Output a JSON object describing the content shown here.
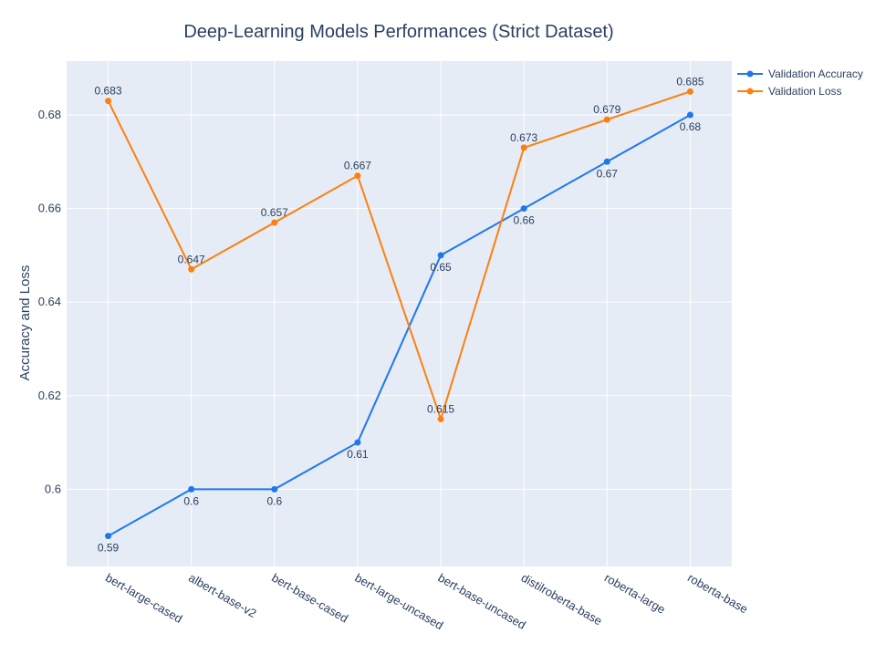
{
  "chart_data": {
    "type": "line",
    "title": "Deep-Learning Models Performances (Strict Dataset)",
    "xlabel": "",
    "ylabel": "Accuracy and Loss",
    "categories": [
      "bert-large-cased",
      "albert-base-v2",
      "bert-base-cased",
      "bert-large-uncased",
      "bert-base-uncased",
      "distilroberta-base",
      "roberta-large",
      "roberta-base"
    ],
    "series": [
      {
        "name": "Validation Accuracy",
        "color": "#1f77f0",
        "label_position": "below",
        "values": [
          0.59,
          0.6,
          0.6,
          0.61,
          0.65,
          0.66,
          0.67,
          0.68
        ],
        "labels": [
          "0.59",
          "0.6",
          "0.6",
          "0.61",
          "0.65",
          "0.66",
          "0.67",
          "0.68"
        ]
      },
      {
        "name": "Validation Loss",
        "color": "#ff7f0e",
        "label_position": "above",
        "values": [
          0.683,
          0.647,
          0.657,
          0.667,
          0.615,
          0.673,
          0.679,
          0.685
        ],
        "labels": [
          "0.683",
          "0.647",
          "0.657",
          "0.667",
          "0.615",
          "0.673",
          "0.679",
          "0.685"
        ]
      }
    ],
    "ylim": [
      0.5835,
      0.6915
    ],
    "yticks": [
      0.6,
      0.62,
      0.64,
      0.66,
      0.68
    ],
    "ytick_labels": [
      "0.6",
      "0.62",
      "0.64",
      "0.66",
      "0.68"
    ],
    "grid": true,
    "legend_position": "top-right",
    "plot_background": "#e5ecf6"
  }
}
